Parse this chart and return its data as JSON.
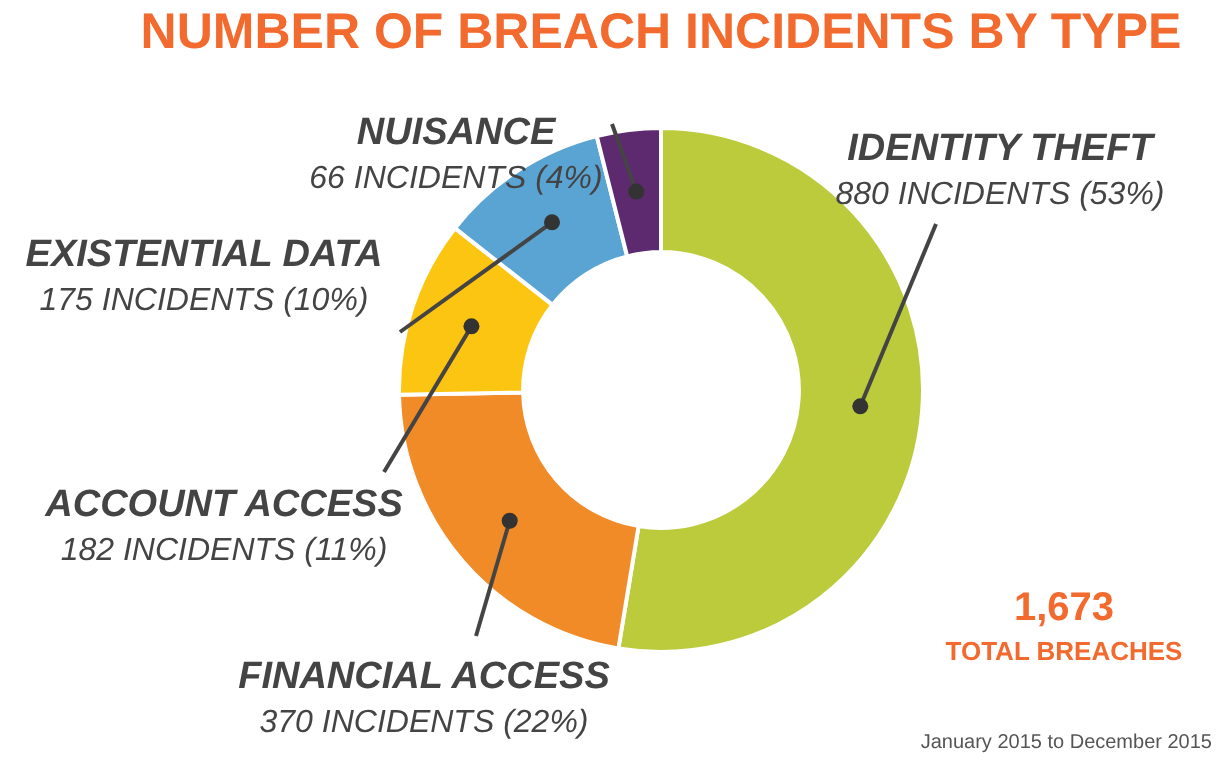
{
  "chart_data": {
    "type": "donut",
    "title": "NUMBER OF BREACH INCIDENTS BY TYPE",
    "categories": [
      "IDENTITY THEFT",
      "FINANCIAL ACCESS",
      "ACCOUNT ACCESS",
      "EXISTENTIAL DATA",
      "NUISANCE"
    ],
    "values": [
      880,
      370,
      182,
      175,
      66
    ],
    "value_labels": [
      "880 INCIDENTS (53%)",
      "370 INCIDENTS (22%)",
      "182 INCIDENTS (11%)",
      "175 INCIDENTS (10%)",
      "66 INCIDENTS (4%)"
    ],
    "colors": [
      "#bccb3c",
      "#f18b27",
      "#fcc512",
      "#5aa4d4",
      "#5e2a6f"
    ],
    "legend": false,
    "annotations": [
      "1,673\nTOTAL BREACHES",
      "January 2015 to December 2015"
    ]
  }
}
